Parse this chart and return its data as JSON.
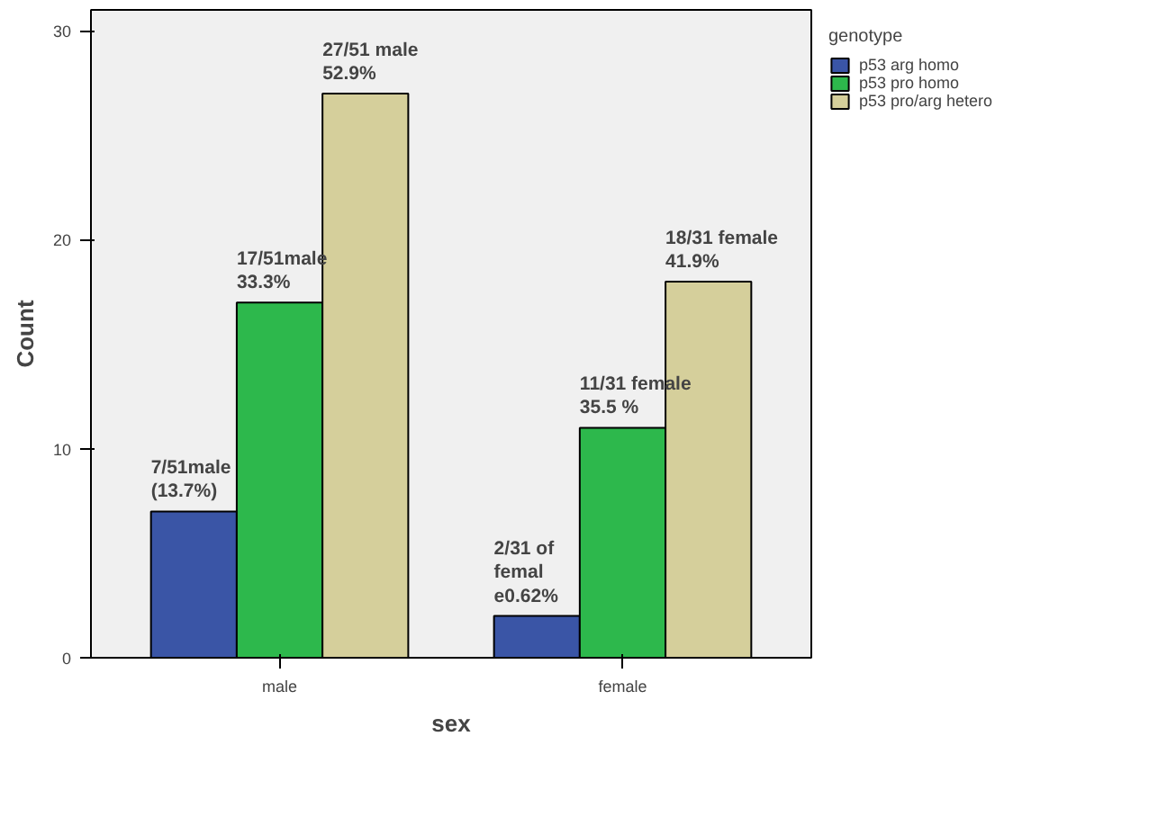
{
  "chart_data": {
    "type": "bar",
    "xlabel": "sex",
    "ylabel": "Count",
    "legend_title": "genotype",
    "legend": "top right",
    "categories": [
      "male",
      "female"
    ],
    "series": [
      {
        "name": "p53 arg homo",
        "color": "#3a55a6",
        "values": [
          7,
          2
        ],
        "value_labels": [
          "7/51male\n(13.7%)",
          "2/31 of\nfemal\ne0.62%"
        ]
      },
      {
        "name": "p53 pro homo",
        "color": "#2db84c",
        "values": [
          17,
          11
        ],
        "value_labels": [
          "17/51male\n33.3%",
          "11/31 female\n35.5 %"
        ]
      },
      {
        "name": "p53 pro/arg hetero",
        "color": "#d5cf9b",
        "values": [
          27,
          18
        ],
        "value_labels": [
          "27/51 male\n52.9%",
          "18/31 female\n41.9%"
        ]
      }
    ],
    "ylim": [
      0,
      31
    ],
    "yticks": [
      0,
      10,
      20,
      30
    ],
    "grid": false
  }
}
